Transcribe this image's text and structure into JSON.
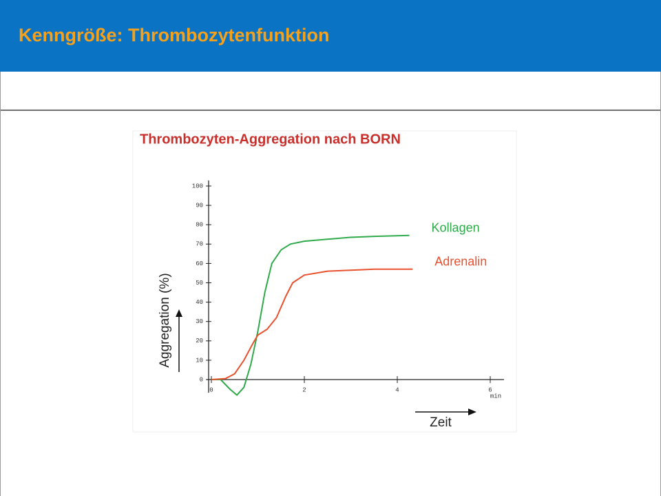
{
  "slide_title": "Kenngröße: Thrombozytenfunktion",
  "chart_data": {
    "type": "line",
    "title": "Thrombozyten-Aggregation nach BORN",
    "x_label": "Zeit",
    "x_unit": "min",
    "y_label": "Aggregation (%)",
    "xlim": [
      0,
      6
    ],
    "xticks": [
      0,
      2,
      4,
      6
    ],
    "ylim": [
      0,
      100
    ],
    "yticks": [
      0,
      10,
      20,
      30,
      40,
      50,
      60,
      70,
      80,
      90,
      100
    ],
    "series": [
      {
        "name": "Kollagen",
        "color": "#2eaa4a",
        "x": [
          0,
          0.2,
          0.4,
          0.55,
          0.7,
          0.85,
          1.0,
          1.15,
          1.3,
          1.5,
          1.7,
          2.0,
          2.5,
          3.0,
          3.5,
          4.26
        ],
        "values": [
          0,
          0,
          -5,
          -8,
          -4,
          8,
          25,
          45,
          60,
          67,
          70,
          71.5,
          72.5,
          73.5,
          74,
          74.5
        ]
      },
      {
        "name": "Adrenalin",
        "color": "#e8502e",
        "x": [
          0,
          0.3,
          0.5,
          0.7,
          0.9,
          1.0,
          1.2,
          1.4,
          1.6,
          1.75,
          2.0,
          2.5,
          3.0,
          3.5,
          4.33
        ],
        "values": [
          0,
          0.5,
          3,
          10,
          19,
          23,
          26,
          32,
          43,
          50,
          54,
          56,
          56.5,
          57,
          57
        ]
      }
    ]
  }
}
